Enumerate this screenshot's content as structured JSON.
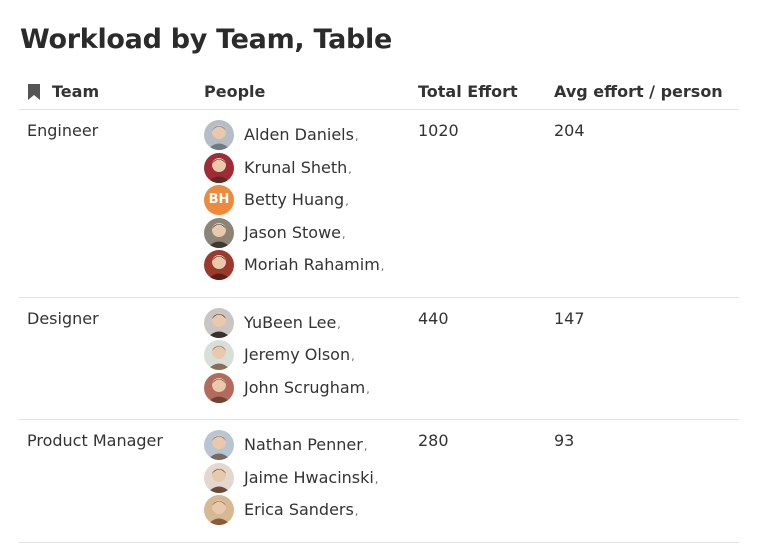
{
  "page": {
    "title": "Workload by Team, Table"
  },
  "columns": {
    "team": "Team",
    "people": "People",
    "total": "Total Effort",
    "avg": "Avg effort / person"
  },
  "rows": [
    {
      "team": "Engineer",
      "total": "1020",
      "avg": "204",
      "people": [
        {
          "name": "Alden Daniels",
          "avatar": "photo",
          "bg": "#b7bdc4",
          "fg": "#6f7a85"
        },
        {
          "name": "Krunal Sheth",
          "avatar": "photo",
          "bg": "#a02a35",
          "fg": "#5a2b22"
        },
        {
          "name": "Betty Huang",
          "avatar": "initials",
          "initials": "BH",
          "bg": "#ef8a3c"
        },
        {
          "name": "Jason Stowe",
          "avatar": "photo",
          "bg": "#8d8478",
          "fg": "#3f3933"
        },
        {
          "name": "Moriah Rahamim",
          "avatar": "photo",
          "bg": "#9b3a2c",
          "fg": "#5e1f18"
        }
      ]
    },
    {
      "team": "Designer",
      "total": "440",
      "avg": "147",
      "people": [
        {
          "name": "YuBeen Lee",
          "avatar": "photo",
          "bg": "#c9c5c2",
          "fg": "#3a2f2b"
        },
        {
          "name": "Jeremy Olson",
          "avatar": "photo",
          "bg": "#d8dfd9",
          "fg": "#8d6e55"
        },
        {
          "name": "John Scrugham",
          "avatar": "photo",
          "bg": "#b56a5e",
          "fg": "#6b4537"
        }
      ]
    },
    {
      "team": "Product Manager",
      "total": "280",
      "avg": "93",
      "people": [
        {
          "name": "Nathan Penner",
          "avatar": "photo",
          "bg": "#b9c5d1",
          "fg": "#7a6a5e"
        },
        {
          "name": "Jaime Hwacinski",
          "avatar": "photo",
          "bg": "#e2d8cf",
          "fg": "#6b4a35"
        },
        {
          "name": "Erica Sanders",
          "avatar": "photo",
          "bg": "#d6b892",
          "fg": "#8a5b3a"
        }
      ]
    }
  ],
  "colors": {
    "border": "#e2e2e2",
    "text": "#333333",
    "initials_bg": "#ef8a3c"
  },
  "icons": {
    "team_header": "bookmark-icon"
  }
}
